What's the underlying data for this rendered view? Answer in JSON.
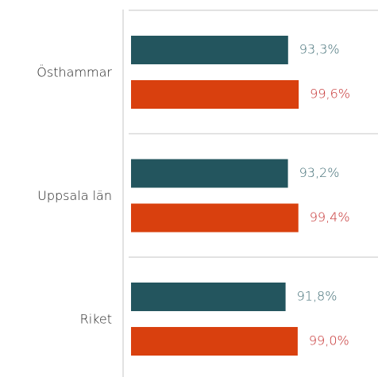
{
  "chart_data": {
    "type": "bar",
    "orientation": "horizontal",
    "categories": [
      "Östhammar",
      "Uppsala län",
      "Riket"
    ],
    "xlim": [
      0,
      100
    ],
    "series": [
      {
        "color": "#23555e",
        "label_color": "#3f6c74",
        "values": [
          93.3,
          93.2,
          91.8
        ],
        "value_labels": [
          "93,3%",
          "93,2%",
          "91,8%"
        ]
      },
      {
        "color": "#d9400e",
        "label_color": "#c42d2d",
        "values": [
          99.6,
          99.4,
          99.0
        ],
        "value_labels": [
          "99,6%",
          "99,4%",
          "99,0%"
        ]
      }
    ]
  }
}
